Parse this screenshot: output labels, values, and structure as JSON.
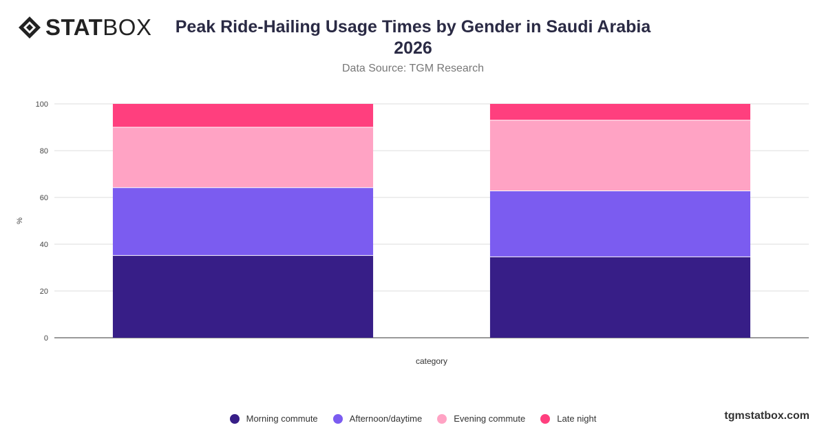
{
  "brand": {
    "logo_text_bold": "STAT",
    "logo_text_light": "BOX",
    "footer": "tgmstatbox.com"
  },
  "header": {
    "title": "Peak Ride-Hailing Usage Times by Gender in Saudi Arabia 2026",
    "subtitle": "Data Source: TGM Research"
  },
  "chart_data": {
    "type": "bar",
    "stacked": true,
    "categories": [
      "",
      ""
    ],
    "series": [
      {
        "name": "Morning commute",
        "color": "#371e87",
        "values": [
          35.2,
          34.6
        ]
      },
      {
        "name": "Afternoon/daytime",
        "color": "#7b5cf0",
        "values": [
          29.0,
          28.2
        ]
      },
      {
        "name": "Evening commute",
        "color": "#ffa3c4",
        "values": [
          25.8,
          30.2
        ]
      },
      {
        "name": "Late night",
        "color": "#ff3f7e",
        "values": [
          10.0,
          7.0
        ]
      }
    ],
    "xlabel": "category",
    "ylabel": "%",
    "ylim": [
      0,
      100
    ],
    "yticks": [
      0,
      20,
      40,
      60,
      80,
      100
    ],
    "grid": true,
    "legend_position": "bottom"
  }
}
